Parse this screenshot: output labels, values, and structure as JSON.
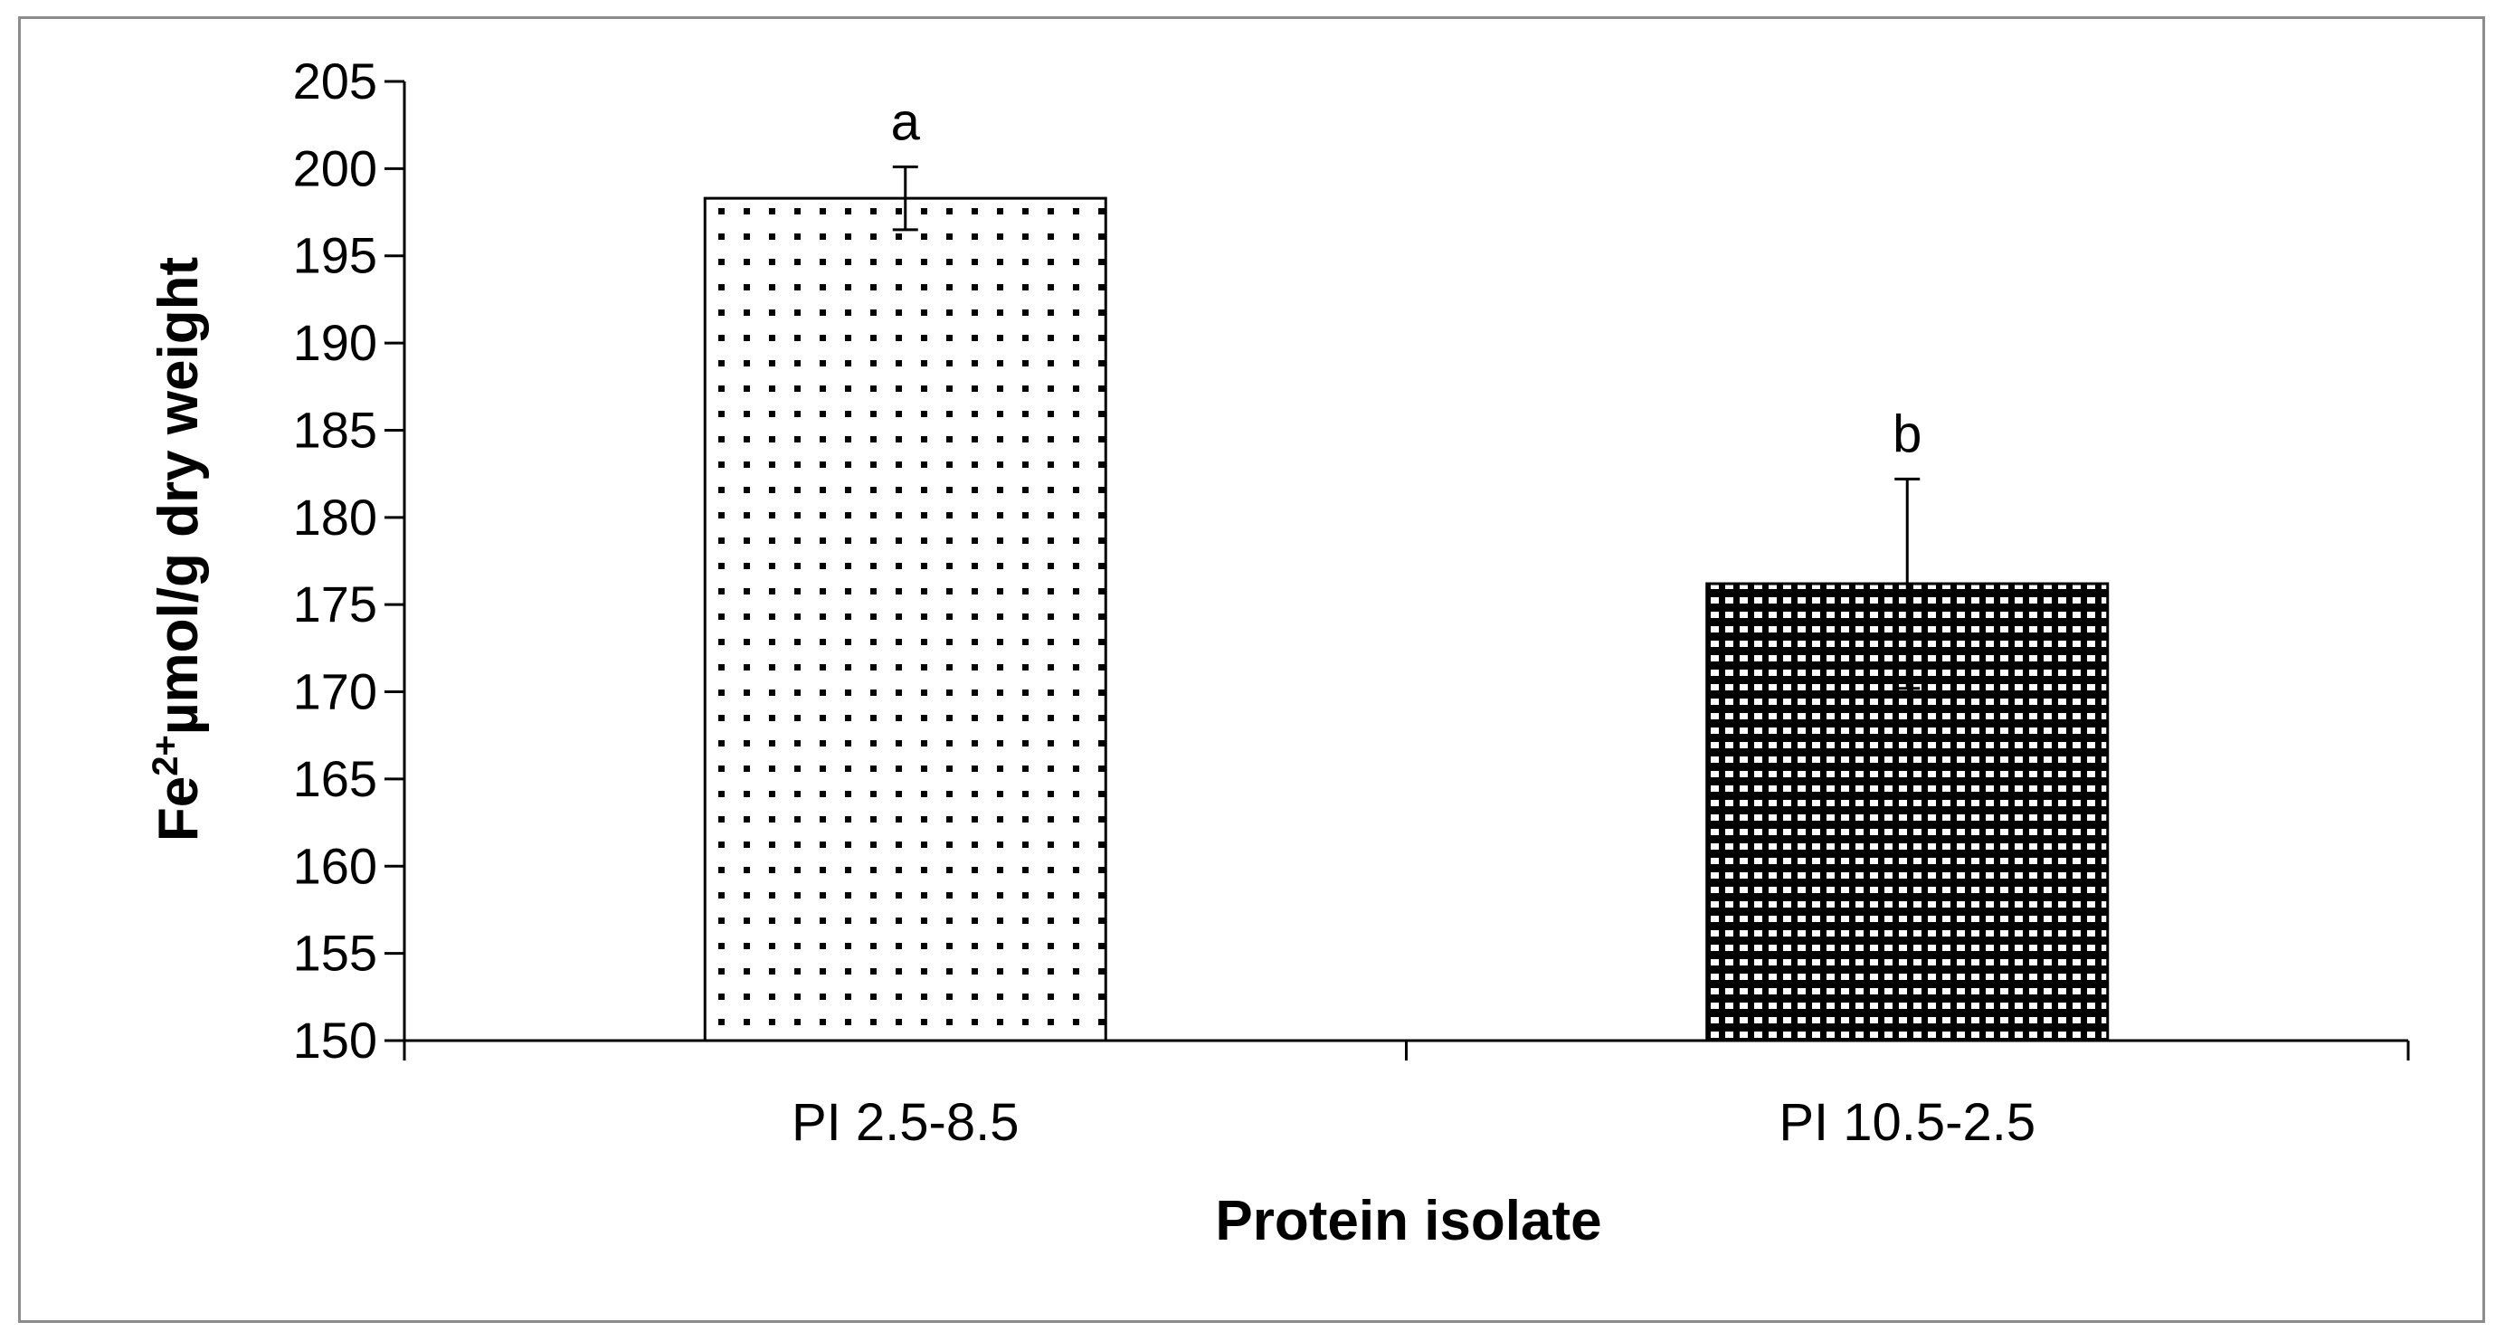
{
  "chart_data": {
    "type": "bar",
    "categories": [
      "PI 2.5-8.5",
      "PI 10.5-2.5"
    ],
    "values": [
      198.3,
      176.2
    ],
    "errors": [
      1.8,
      6.0
    ],
    "significance_labels": [
      "a",
      "b"
    ],
    "xlabel": "Protein isolate",
    "ylabel": {
      "prefix": "Fe",
      "superscript": "2+",
      "suffix": "µmol/g dry weight"
    },
    "ylim": [
      150,
      205
    ],
    "yticks": [
      150,
      155,
      160,
      165,
      170,
      175,
      180,
      185,
      190,
      195,
      200,
      205
    ],
    "grid": false,
    "legend": "none",
    "bar_patterns": [
      "sparse-dots",
      "dense-dots"
    ],
    "colors": {
      "bar_fill": "#ffffff",
      "bar_stroke": "#000000",
      "dots": "#000000",
      "frame": "#8c8c8c"
    }
  }
}
